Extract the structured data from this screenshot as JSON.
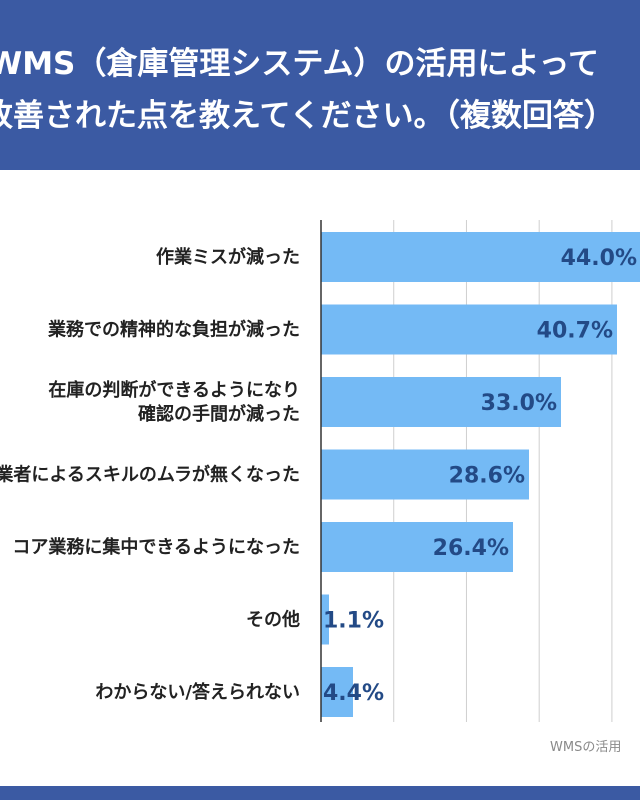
{
  "header": {
    "title_line1": "WMS（倉庫管理システム）の活用によって",
    "title_line2": "改善された点を教えてください。（複数回答）"
  },
  "source_note": "WMSの活用",
  "colors": {
    "header": "#3b5aa3",
    "bar": "#74baf5",
    "value_text": "#234a86",
    "label_text": "#222222",
    "grid": "#cfcfcf"
  },
  "chart_data": {
    "type": "bar",
    "orientation": "horizontal",
    "title": "WMS（倉庫管理システム）の活用によって改善された点を教えてください。（複数回答）",
    "xlabel": "",
    "ylabel": "",
    "unit": "%",
    "xlim": [
      0,
      44
    ],
    "grid": true,
    "categories": [
      [
        "作業ミスが減った"
      ],
      [
        "業務での精神的な負担が減った"
      ],
      [
        "在庫の判断ができるようになり",
        "確認の手間が減った"
      ],
      [
        "作業者によるスキルのムラが無くなった"
      ],
      [
        "コア業務に集中できるようになった"
      ],
      [
        "その他"
      ],
      [
        "わからない/答えられない"
      ]
    ],
    "values": [
      44.0,
      40.7,
      33.0,
      28.6,
      26.4,
      1.1,
      4.4
    ],
    "value_labels": [
      "44.0%",
      "40.7%",
      "33.0%",
      "28.6%",
      "26.4%",
      "1.1%",
      "4.4%"
    ]
  }
}
